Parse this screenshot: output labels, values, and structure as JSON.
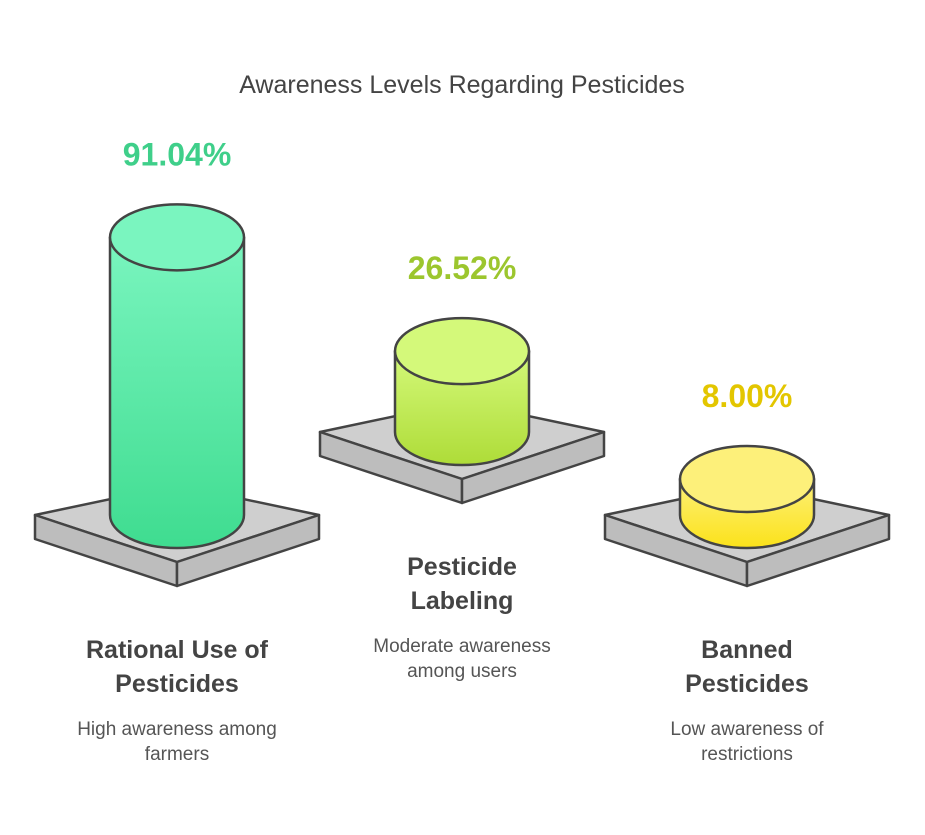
{
  "chart_data": {
    "type": "bar",
    "title": "Awareness Levels Regarding Pesticides",
    "unit": "%",
    "categories": [
      "Rational Use of Pesticides",
      "Pesticide Labeling",
      "Banned Pesticides"
    ],
    "values": [
      91.04,
      26.52,
      8.0
    ],
    "value_labels": [
      "91.04%",
      "26.52%",
      "8.00%"
    ],
    "label_lines": [
      [
        "Rational Use of",
        "Pesticides"
      ],
      [
        "Pesticide",
        "Labeling"
      ],
      [
        "Banned",
        "Pesticides"
      ]
    ],
    "descriptions": [
      [
        "High awareness among",
        "farmers"
      ],
      [
        "Moderate awareness",
        "among users"
      ],
      [
        "Low awareness of",
        "restrictions"
      ]
    ],
    "colors": {
      "bar_top": [
        "#7af5bf",
        "#d4f97a",
        "#fdf07a"
      ],
      "bar_bottom": [
        "#3fdc90",
        "#aedc38",
        "#fbe21a"
      ],
      "value_text": [
        "#3fcf8a",
        "#9cc62e",
        "#e3c600"
      ],
      "platform_top": "#cfcfcf",
      "platform_side": "#bdbdbd",
      "outline": "#444444"
    }
  }
}
